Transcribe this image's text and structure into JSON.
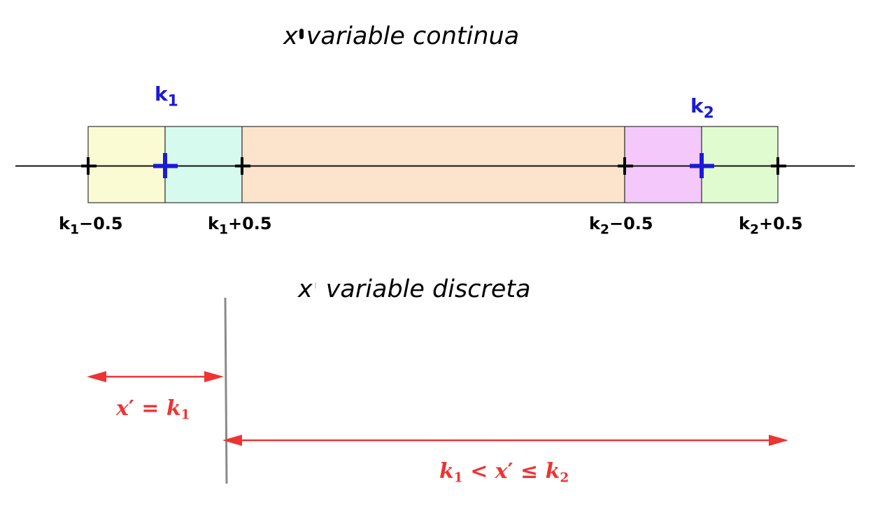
{
  "continuous": {
    "title_var": "x",
    "title_text": "variable continua"
  },
  "discrete": {
    "title_var": "x",
    "title_text": "variable discreta"
  },
  "points": {
    "k1": {
      "k": "k",
      "sub": "1"
    },
    "k2": {
      "k": "k",
      "sub": "2"
    }
  },
  "bounds": {
    "k1_minus": {
      "k": "k",
      "sub": "1",
      "rest": "−0.5"
    },
    "k1_plus": {
      "k": "k",
      "sub": "1",
      "rest": "+0.5"
    },
    "k2_minus": {
      "k": "k",
      "sub": "2",
      "rest": "−0.5"
    },
    "k2_plus": {
      "k": "k",
      "sub": "2",
      "rest": "+0.5"
    }
  },
  "arrows": {
    "left": {
      "x": "x",
      "prime": "′",
      "rel": " = ",
      "k": "k",
      "sub": "1"
    },
    "right": {
      "k1": "k",
      "sub1": "1",
      "lt": " < ",
      "x": "x",
      "prime": "′",
      "le": " ≤ ",
      "k2": "k",
      "sub2": "2"
    }
  },
  "colors": {
    "seg_k1_left": "#fbfbd3",
    "seg_k1_right": "#d6fbee",
    "seg_middle": "#fce3cb",
    "seg_k2_left": "#f4c8fb",
    "seg_k2_right": "#e1fbd0",
    "point_marker": "#1a1ad8",
    "arrow": "#ee3333"
  }
}
